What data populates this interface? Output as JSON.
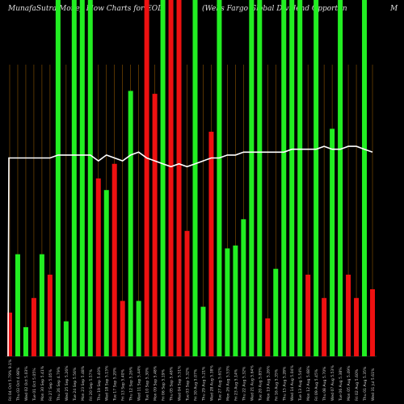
{
  "chart_data": {
    "type": "bar",
    "title_left": "MunafaSutra  Money Flow  Charts for EOD",
    "title_right": "(Wells Fargo  Global Dividend Opportun",
    "title_edge": "M",
    "ylim": [
      0,
      100
    ],
    "categories": [
      "Fri 04 Oct 5.79% 9.1%",
      "Thu 03 Oct 4.98%",
      "Wed 02 Oct 5.03%",
      "Tue 01 Oct 5.05%",
      "Mon 30 Sep 5.41%",
      "Fri 27 Sep 5.05%",
      "Thu 26 Sep 4.79%",
      "Wed 25 Sep 5.26%",
      "Tue 24 Sep 5.56%",
      "Mon 23 Sep 5.48%",
      "Fri 20 Sep 5.57%",
      "Thu 19 Sep 5.40%",
      "Wed 18 Sep 5.15%",
      "Tue 17 Sep 5.20%",
      "Fri 13 Sep 5.40%",
      "Thu 12 Sep 5.26%",
      "Wed 11 Sep 5.44%",
      "Tue 10 Sep 5.30%",
      "Mon 09 Sep 5.48%",
      "Fri 06 Sep 5.19%",
      "Thu 05 Sep 5.48%",
      "Wed 04 Sep 5.51%",
      "Tue 03 Sep 5.32%",
      "Fri 30 Aug 5.07%",
      "Thu 29 Aug 5.21%",
      "Wed 28 Aug 5.38%",
      "Tue 27 Aug 5.61%",
      "Mon 26 Aug 5.53%",
      "Fri 23 Aug 5.14%",
      "Thu 22 Aug 5.32%",
      "Wed 21 Aug 5.64%",
      "Tue 20 Aug 5.85%",
      "Mon 19 Aug 5.26%",
      "Fri 16 Aug 5.35%",
      "Thu 15 Aug 5.28%",
      "Wed 14 Aug 5.04%",
      "Tue 13 Aug 5.54%",
      "Mon 12 Aug 5.68%",
      "Fri 09 Aug 5.45%",
      "Thu 08 Aug 5.70%",
      "Wed 07 Aug 5.53%",
      "Tue 06 Aug 5.38%",
      "Mon 05 Aug 5.49%",
      "Fri 02 Aug 5.60%",
      "Thu 01 Aug 5.35%",
      "Wed 31 Jul 5.61%"
    ],
    "values": [
      15,
      35,
      10,
      20,
      35,
      28,
      100,
      12,
      100,
      100,
      100,
      61,
      57,
      66,
      19,
      91,
      19,
      100,
      90,
      100,
      100,
      100,
      43,
      100,
      17,
      77,
      100,
      37,
      38,
      47,
      100,
      100,
      13,
      30,
      100,
      100,
      100,
      28,
      100,
      20,
      78,
      100,
      28,
      20,
      100,
      23
    ],
    "colors": [
      "red",
      "green",
      "green",
      "red",
      "green",
      "red",
      "green",
      "green",
      "green",
      "green",
      "green",
      "red",
      "green",
      "red",
      "red",
      "green",
      "green",
      "red",
      "red",
      "green",
      "red",
      "red",
      "red",
      "green",
      "green",
      "red",
      "green",
      "green",
      "green",
      "green",
      "green",
      "green",
      "red",
      "green",
      "green",
      "green",
      "green",
      "red",
      "green",
      "red",
      "green",
      "green",
      "red",
      "red",
      "green",
      "red"
    ],
    "line_values": [
      68,
      68,
      68,
      68,
      68,
      68,
      69,
      69,
      69,
      69,
      69,
      67,
      69,
      68,
      67,
      69,
      70,
      68,
      67,
      66,
      65,
      66,
      65,
      66,
      67,
      68,
      68,
      69,
      69,
      70,
      70,
      70,
      70,
      70,
      70,
      71,
      71,
      71,
      71,
      72,
      71,
      71,
      72,
      72,
      71,
      70
    ],
    "series_colors": {
      "green": "#22ee22",
      "red": "#ee1111",
      "line": "#ffffff",
      "grid": "#ff9900"
    }
  }
}
